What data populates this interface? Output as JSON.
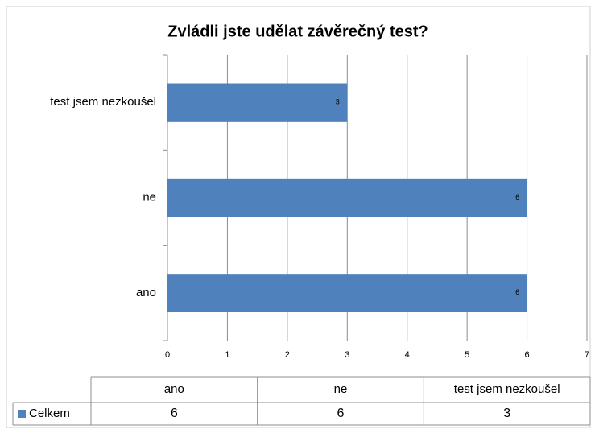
{
  "chart_data": {
    "type": "bar",
    "orientation": "horizontal",
    "title": "Zvládli jste udělat závěrečný test?",
    "categories": [
      "ano",
      "ne",
      "test jsem nezkoušel"
    ],
    "series": [
      {
        "name": "Celkem",
        "color": "#4f81bd",
        "values": [
          6,
          6,
          3
        ]
      }
    ],
    "xlim": [
      0,
      7
    ],
    "xticks": [
      0,
      1,
      2,
      3,
      4,
      5,
      6,
      7
    ],
    "grid": true,
    "data_table": true
  }
}
